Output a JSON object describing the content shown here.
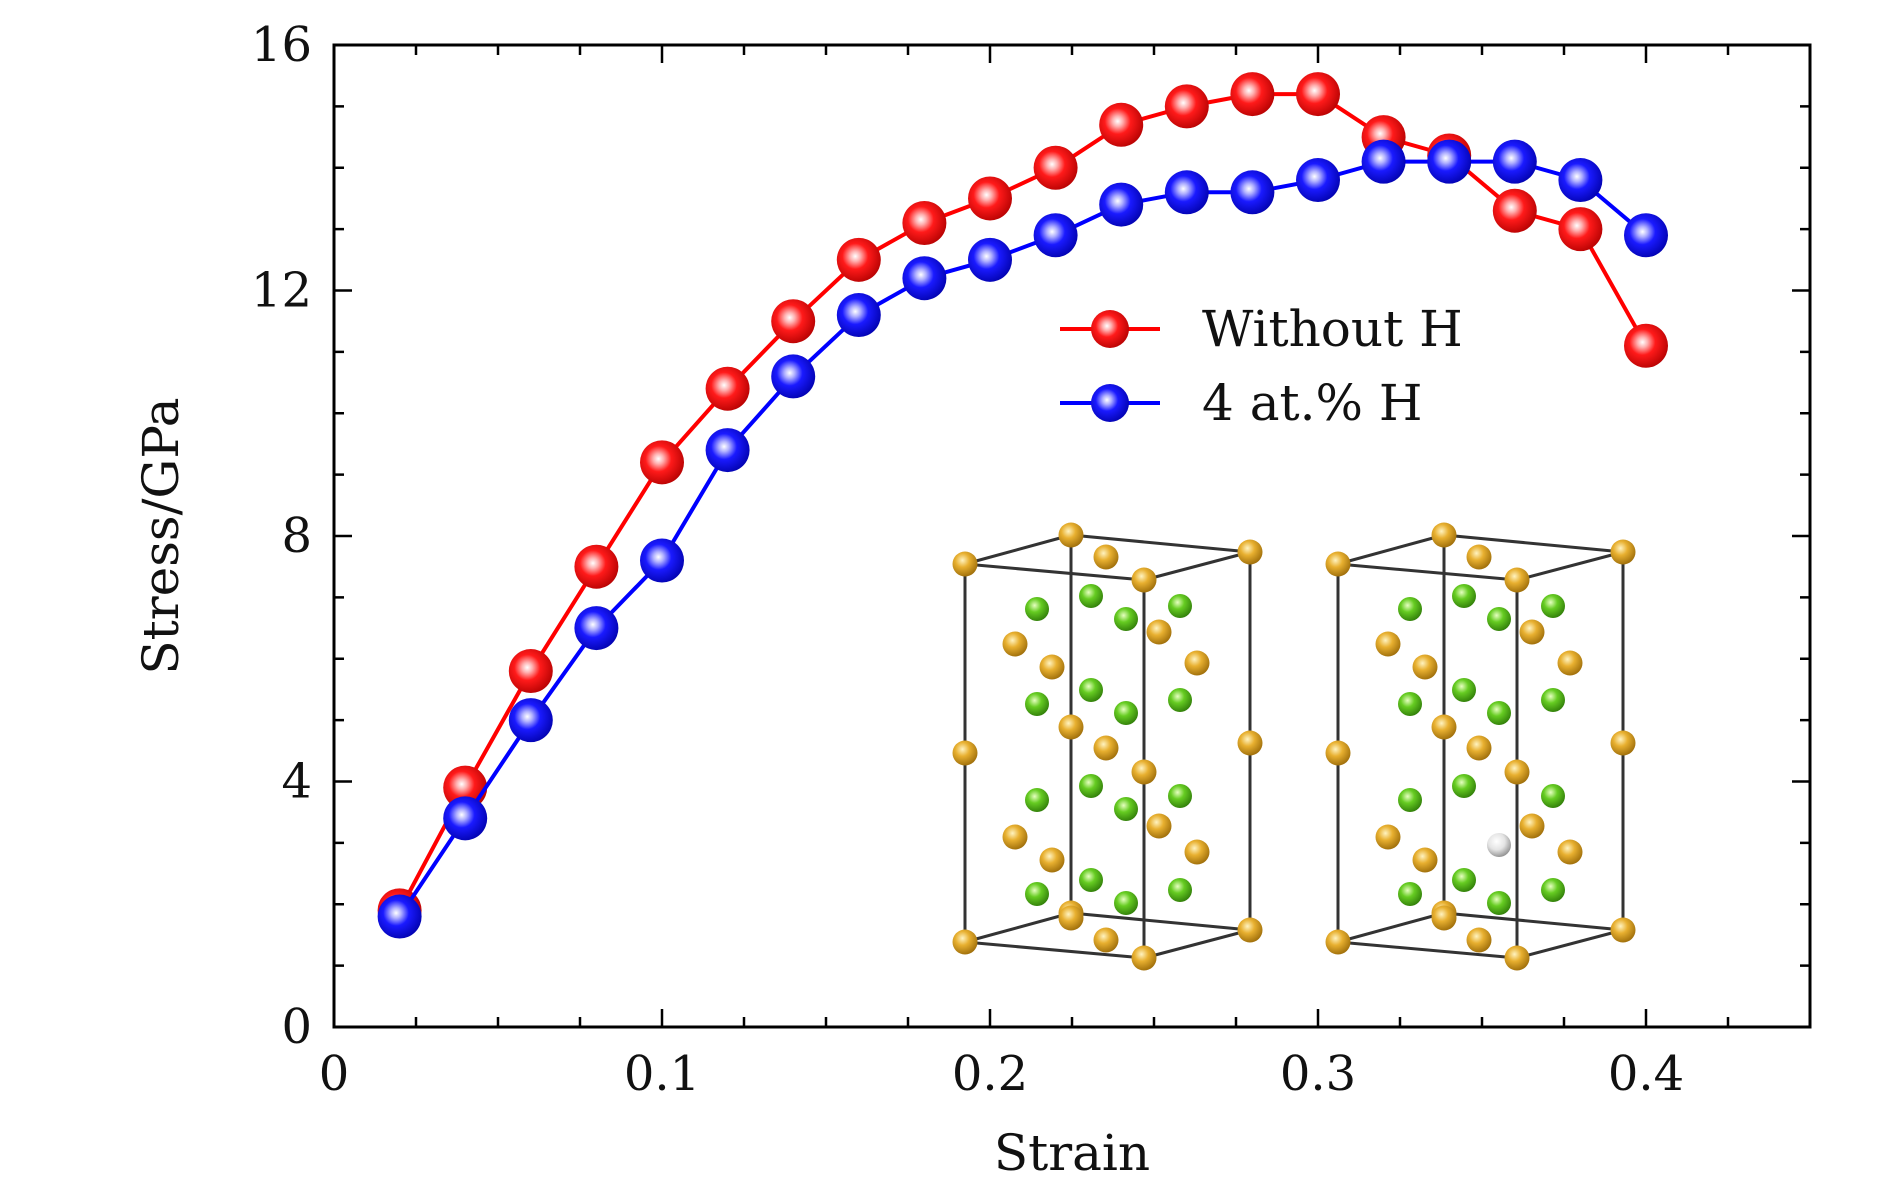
{
  "chart_data": {
    "type": "line",
    "xlabel": "Strain",
    "ylabel": "Stress/GPa",
    "xlim": [
      0,
      0.45
    ],
    "ylim": [
      0,
      16
    ],
    "x_ticks": [
      0,
      0.1,
      0.2,
      0.3,
      0.4
    ],
    "x_tick_labels": [
      "0",
      "0.1",
      "0.2",
      "0.3",
      "0.4"
    ],
    "y_ticks": [
      0,
      4,
      8,
      12,
      16
    ],
    "y_tick_labels": [
      "0",
      "4",
      "8",
      "12",
      "16"
    ],
    "legend_position": "upper-right",
    "series": [
      {
        "name": "Without H",
        "color": "#ff0000",
        "x": [
          0.02,
          0.04,
          0.06,
          0.08,
          0.1,
          0.12,
          0.14,
          0.16,
          0.18,
          0.2,
          0.22,
          0.24,
          0.26,
          0.28,
          0.3,
          0.32,
          0.34,
          0.36,
          0.38,
          0.4
        ],
        "y": [
          1.9,
          3.9,
          5.8,
          7.5,
          9.2,
          10.4,
          11.5,
          12.5,
          13.1,
          13.5,
          14.0,
          14.7,
          15.0,
          15.2,
          15.2,
          14.5,
          14.2,
          13.3,
          13.0,
          11.1
        ]
      },
      {
        "name": "4 at.% H",
        "color": "#0000ff",
        "x": [
          0.02,
          0.04,
          0.06,
          0.08,
          0.1,
          0.12,
          0.14,
          0.16,
          0.18,
          0.2,
          0.22,
          0.24,
          0.26,
          0.28,
          0.3,
          0.32,
          0.34,
          0.36,
          0.38,
          0.4
        ],
        "y": [
          1.8,
          3.4,
          5.0,
          6.5,
          7.6,
          9.4,
          10.6,
          11.6,
          12.2,
          12.5,
          12.9,
          13.4,
          13.6,
          13.6,
          13.8,
          14.1,
          14.1,
          14.1,
          13.8,
          12.9
        ]
      }
    ]
  },
  "inset": {
    "description_icon": "crystal-structure-icon",
    "atom_colors": {
      "metal": "#e0a020",
      "nonmetal": "#66cc22",
      "hydrogen": "#eeeeee"
    }
  }
}
